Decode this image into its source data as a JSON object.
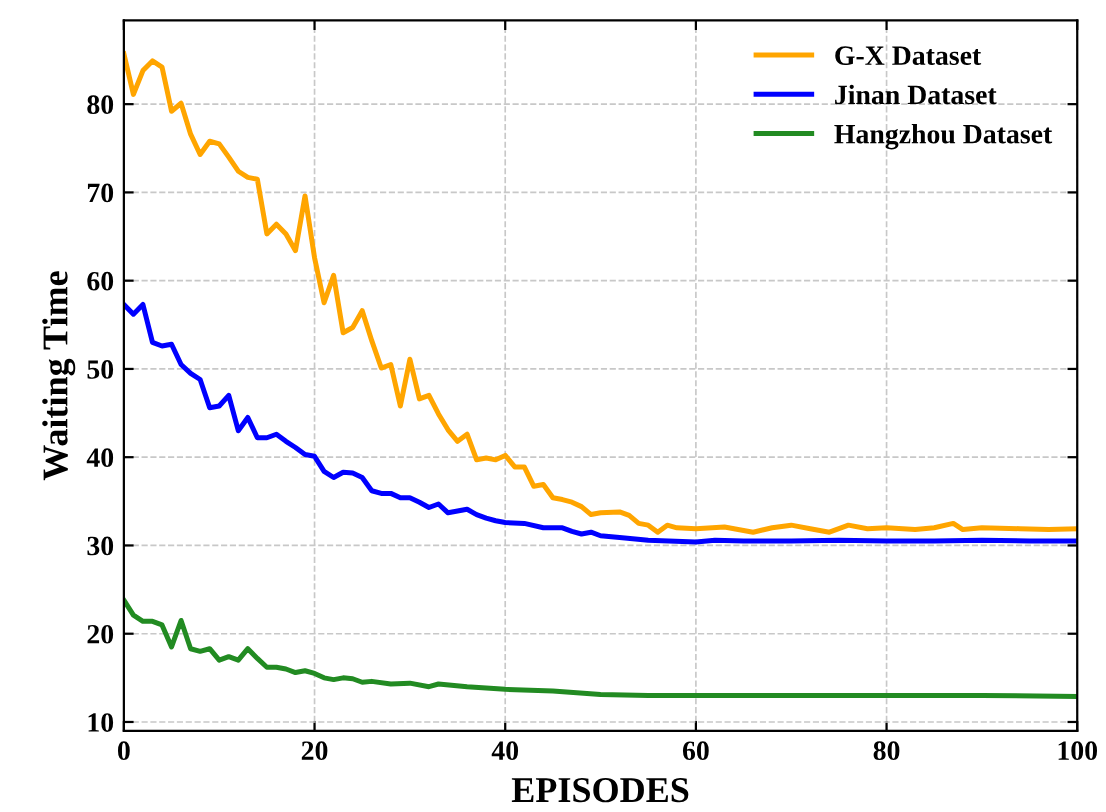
{
  "chart_data": {
    "type": "line",
    "xlabel": "EPISODES",
    "ylabel": "Waiting Time",
    "xlim": [
      0,
      100
    ],
    "ylim": [
      9,
      89.5
    ],
    "xticks": [
      0,
      20,
      40,
      60,
      80,
      100
    ],
    "yticks": [
      10,
      20,
      30,
      40,
      50,
      60,
      70,
      80
    ],
    "grid": true,
    "legend": "top right",
    "marker": "none",
    "line_style": "solid",
    "series": [
      {
        "name": "G-X Dataset",
        "color": "#ffa500",
        "x": [
          0,
          1,
          2,
          3,
          4,
          5,
          6,
          7,
          8,
          9,
          10,
          11,
          12,
          13,
          14,
          15,
          16,
          17,
          18,
          19,
          20,
          21,
          22,
          23,
          24,
          25,
          26,
          27,
          28,
          29,
          30,
          31,
          32,
          33,
          34,
          35,
          36,
          37,
          38,
          39,
          40,
          41,
          42,
          43,
          44,
          45,
          46,
          47,
          48,
          49,
          50,
          52,
          53,
          54,
          55,
          56,
          57,
          58,
          60,
          63,
          66,
          68,
          70,
          72,
          74,
          76,
          78,
          80,
          83,
          85,
          87,
          88,
          90,
          94,
          97,
          100
        ],
        "values": [
          85.7,
          81.1,
          83.8,
          84.9,
          84.2,
          79.2,
          80.1,
          76.6,
          74.3,
          75.8,
          75.5,
          74,
          72.4,
          71.7,
          71.5,
          65.3,
          66.4,
          65.3,
          63.4,
          69.6,
          62.6,
          57.5,
          60.6,
          54.1,
          54.7,
          56.6,
          53.2,
          50.1,
          50.5,
          45.8,
          51.1,
          46.6,
          47,
          44.9,
          43.1,
          41.8,
          42.6,
          39.7,
          39.9,
          39.7,
          40.2,
          38.9,
          38.9,
          36.7,
          36.9,
          35.4,
          35.2,
          34.9,
          34.4,
          33.5,
          33.7,
          33.8,
          33.4,
          32.5,
          32.3,
          31.5,
          32.3,
          32,
          31.9,
          32.1,
          31.5,
          32,
          32.3,
          31.9,
          31.5,
          32.3,
          31.9,
          32,
          31.8,
          32,
          32.5,
          31.8,
          32,
          31.9,
          31.8,
          31.9
        ]
      },
      {
        "name": "Jinan Dataset",
        "color": "#0000ff",
        "x": [
          0,
          1,
          2,
          3,
          4,
          5,
          6,
          7,
          8,
          9,
          10,
          11,
          12,
          13,
          14,
          15,
          16,
          17,
          18,
          19,
          20,
          21,
          22,
          23,
          24,
          25,
          26,
          27,
          28,
          29,
          30,
          31,
          32,
          33,
          34,
          35,
          36,
          37,
          38,
          39,
          40,
          42,
          44,
          46,
          47,
          48,
          49,
          50,
          52,
          55,
          60,
          62,
          65,
          70,
          75,
          80,
          85,
          90,
          95,
          100
        ],
        "values": [
          57.3,
          56.2,
          57.3,
          53,
          52.6,
          52.8,
          50.5,
          49.5,
          48.8,
          45.6,
          45.8,
          47,
          43,
          44.5,
          42.2,
          42.2,
          42.6,
          41.8,
          41.1,
          40.3,
          40.1,
          38.4,
          37.7,
          38.3,
          38.2,
          37.7,
          36.2,
          35.9,
          35.9,
          35.4,
          35.4,
          34.9,
          34.3,
          34.7,
          33.7,
          33.9,
          34.1,
          33.5,
          33.1,
          32.8,
          32.6,
          32.5,
          32,
          32,
          31.6,
          31.3,
          31.5,
          31.1,
          30.9,
          30.6,
          30.4,
          30.6,
          30.5,
          30.5,
          30.6,
          30.5,
          30.5,
          30.6,
          30.5,
          30.5
        ]
      },
      {
        "name": "Hangzhou Dataset",
        "color": "#228b22",
        "x": [
          0,
          1,
          2,
          3,
          4,
          5,
          6,
          7,
          8,
          9,
          10,
          11,
          12,
          13,
          14,
          15,
          16,
          17,
          18,
          19,
          20,
          21,
          22,
          23,
          24,
          25,
          26,
          28,
          30,
          32,
          33,
          36,
          40,
          45,
          50,
          55,
          60,
          70,
          80,
          90,
          100
        ],
        "values": [
          23.8,
          22.1,
          21.4,
          21.4,
          21,
          18.5,
          21.5,
          18.3,
          18,
          18.3,
          17,
          17.4,
          17,
          18.3,
          17.2,
          16.2,
          16.2,
          16,
          15.6,
          15.8,
          15.5,
          15,
          14.8,
          15,
          14.9,
          14.5,
          14.6,
          14.3,
          14.4,
          14,
          14.3,
          14,
          13.7,
          13.5,
          13.1,
          13,
          13,
          13,
          13,
          13,
          12.9
        ]
      }
    ]
  }
}
